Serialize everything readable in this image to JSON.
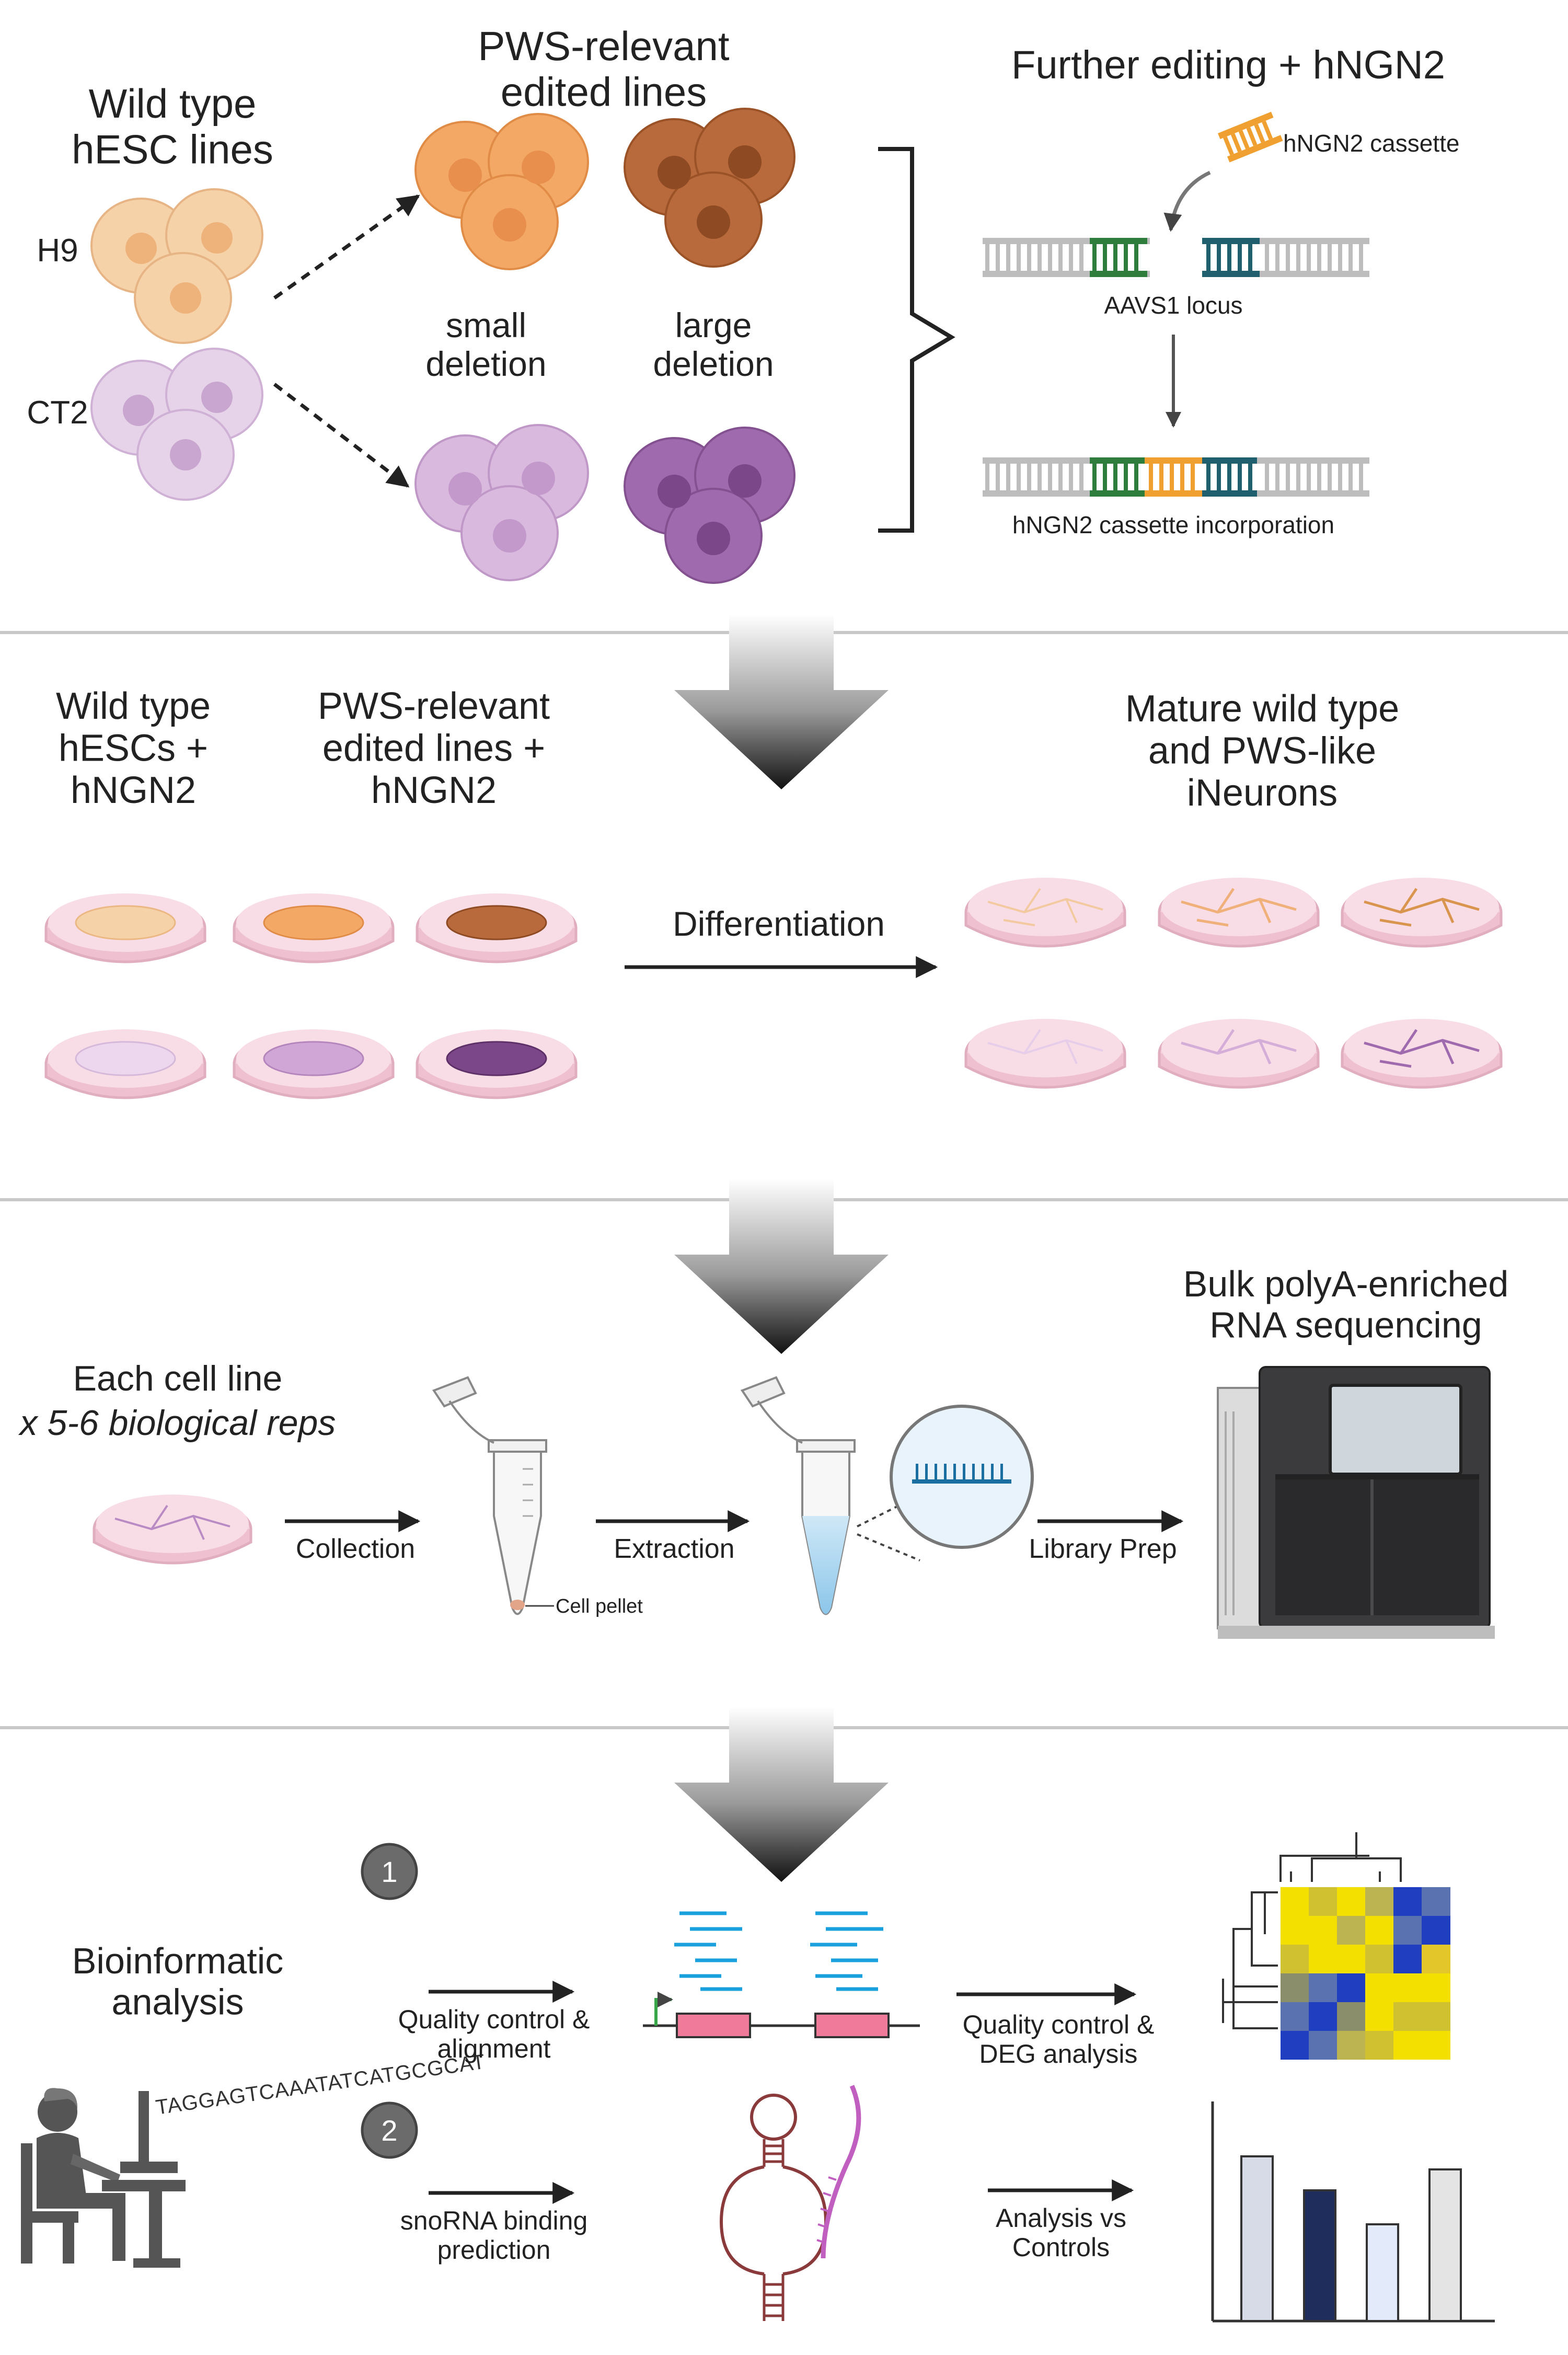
{
  "panel1": {
    "wild_type_title": "Wild type\nhESC lines",
    "h9_label": "H9",
    "ct2_label": "CT2",
    "edited_title": "PWS-relevant\nedited lines",
    "small_deletion": "small\ndeletion",
    "large_deletion": "large\ndeletion",
    "further_title": "Further editing + hNGN2",
    "cassette_label": "hNGN2 cassette",
    "aavs1_label": "AAVS1 locus",
    "incorporation_label": "hNGN2 cassette incorporation"
  },
  "panel2": {
    "wt_title": "Wild type\nhESCs +\nhNGN2",
    "edited_title": "PWS-relevant\nedited lines +\nhNGN2",
    "mature_title": "Mature wild type\nand PWS-like\niNeurons",
    "differentiation_label": "Differentiation"
  },
  "panel3": {
    "each_line": "Each cell line",
    "reps": "x 5-6 biological reps",
    "collection": "Collection",
    "extraction": "Extraction",
    "library_prep": "Library Prep",
    "cell_pellet": "Cell pellet",
    "bulk_title": "Bulk polyA-enriched\nRNA sequencing"
  },
  "panel4": {
    "bio_title": "Bioinformatic\nanalysis",
    "step1_number": "1",
    "step2_number": "2",
    "qc_alignment": "Quality control &\nalignment",
    "qc_deg": "Quality control &\nDEG analysis",
    "snorna": "snoRNA binding\nprediction",
    "analysis_controls": "Analysis vs\nControls",
    "dna_sequence": "TAGGAGTCAAATATCATGCGCAT"
  },
  "colors": {
    "orange_light": "#f6d2a8",
    "orange_mid": "#f3a866",
    "brown": "#b86a3c",
    "lilac_light": "#e6d3e9",
    "lilac_mid": "#cfa6d6",
    "purple_dark": "#a06aae",
    "dish_pink": "#f4d3dd",
    "separator": "#c8c8c8",
    "green_dna": "#2f7d3c",
    "teal_dna": "#1f5f6e",
    "orange_dna": "#f0a030",
    "heat_yellow": "#f3e000",
    "heat_blue": "#1f3fc0",
    "bar_navy": "#1f2d5c"
  }
}
